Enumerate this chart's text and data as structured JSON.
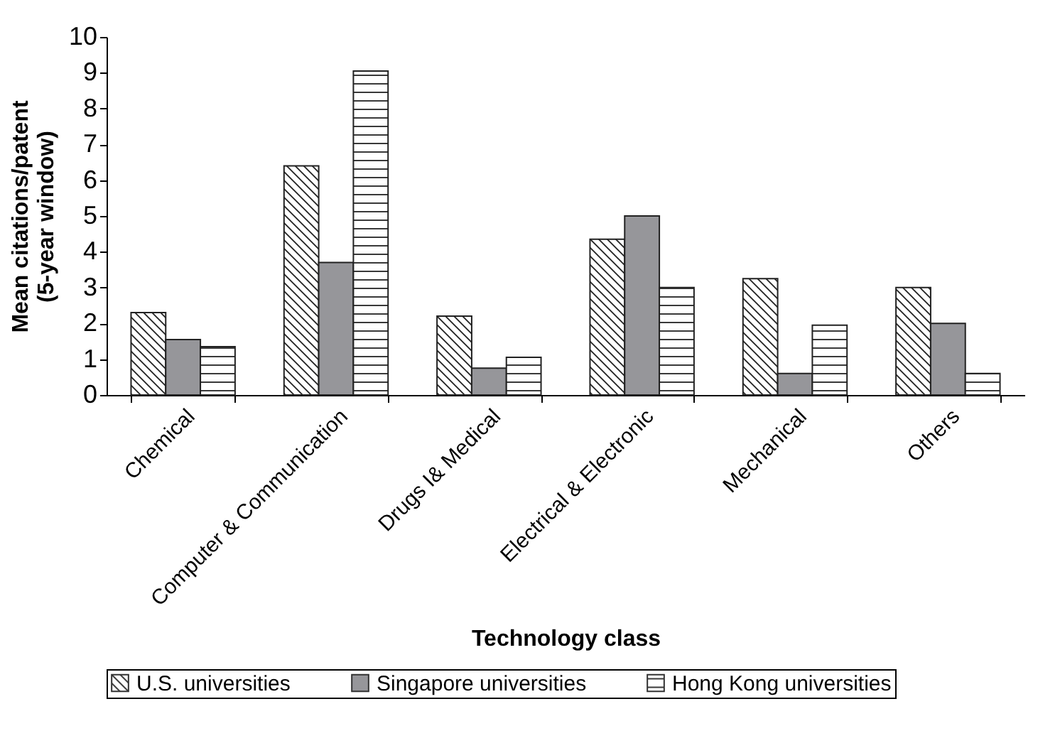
{
  "chart_data": {
    "type": "bar",
    "xlabel": "Technology class",
    "ylabel": "Mean citations/patent (5-year window)",
    "categories": [
      "Chemical",
      "Computer & Communication",
      "Drugs I& Medical",
      "Electrical & Electronic",
      "Mechanical",
      "Others"
    ],
    "series": [
      {
        "name": "U.S. universities",
        "color": "#222222",
        "values": [
          2.3,
          6.4,
          2.2,
          4.35,
          3.25,
          3.0
        ]
      },
      {
        "name": "Singapore universities",
        "color": "#96969a",
        "values": [
          1.55,
          3.7,
          0.75,
          5.0,
          0.6,
          2.0
        ]
      },
      {
        "name": "Hong Kong universities",
        "color": "#222222",
        "values": [
          1.35,
          9.05,
          1.05,
          3.0,
          1.95,
          0.6
        ]
      }
    ],
    "ylim": [
      0,
      10
    ],
    "yticks": [
      0,
      1,
      2,
      3,
      4,
      5,
      6,
      7,
      8,
      9,
      10
    ],
    "grid": false,
    "legend": "bottom"
  }
}
